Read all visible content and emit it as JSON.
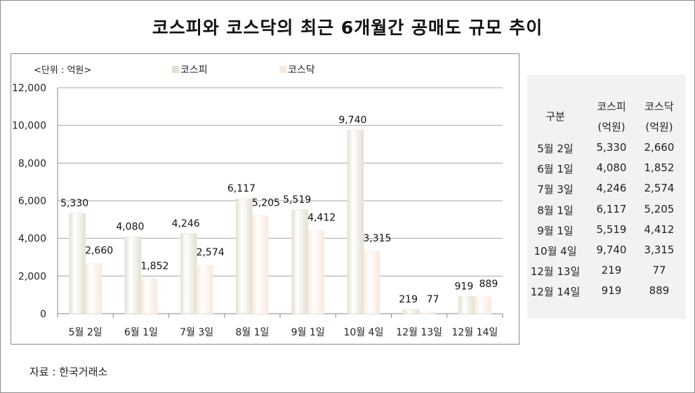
{
  "title": "코스피와 코스닥의 최근 6개월간 공매도 규모 추이",
  "unit_label": "<단위 : 억원>",
  "source": "자료 : 한국거래소",
  "colors": {
    "kospi": "#e4e0d2",
    "kosdaq": "#fbe8dc"
  },
  "chart_data": {
    "type": "bar",
    "categories": [
      "5월 2일",
      "6월 1일",
      "7월 3일",
      "8월 1일",
      "9월 1일",
      "10월 4일",
      "12월 13일",
      "12월 14일"
    ],
    "series": [
      {
        "name": "코스피",
        "values": [
          5330,
          4080,
          4246,
          6117,
          5519,
          9740,
          219,
          919
        ],
        "labels": [
          "5,330",
          "4,080",
          "4,246",
          "6,117",
          "5,519",
          "9,740",
          "219",
          "919"
        ]
      },
      {
        "name": "코스닥",
        "values": [
          2660,
          1852,
          2574,
          5205,
          4412,
          3315,
          77,
          889
        ],
        "labels": [
          "2,660",
          "1,852",
          "2,574",
          "5,205",
          "4,412",
          "3,315",
          "77",
          "889"
        ]
      }
    ],
    "ylim": [
      0,
      12000
    ],
    "yticks": [
      "0",
      "2,000",
      "4,000",
      "6,000",
      "8,000",
      "10,000",
      "12,000"
    ],
    "grid": true,
    "legend": "top"
  },
  "table": {
    "headers": [
      {
        "line1": "구분",
        "line2": ""
      },
      {
        "line1": "코스피",
        "line2": "(억원)"
      },
      {
        "line1": "코스닥",
        "line2": "(억원)"
      }
    ],
    "rows": [
      [
        "5월 2일",
        "5,330",
        "2,660"
      ],
      [
        "6월 1일",
        "4,080",
        "1,852"
      ],
      [
        "7월 3일",
        "4,246",
        "2,574"
      ],
      [
        "8월 1일",
        "6,117",
        "5,205"
      ],
      [
        "9월 1일",
        "5,519",
        "4,412"
      ],
      [
        "10월 4일",
        "9,740",
        "3,315"
      ],
      [
        "12월 13일",
        "219",
        "77"
      ],
      [
        "12월 14일",
        "919",
        "889"
      ]
    ]
  }
}
